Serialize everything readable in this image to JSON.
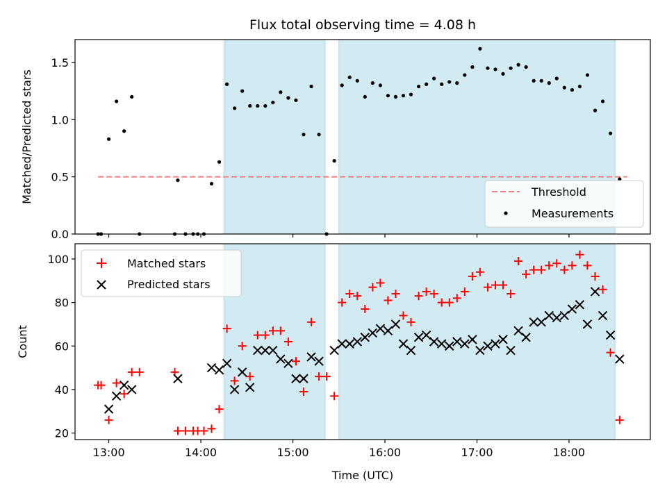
{
  "chart_data": [
    {
      "type": "scatter",
      "title": "Flux total observing time = 4.08 h",
      "xlabel": "",
      "ylabel": "Matched/Predicted stars",
      "ylim": [
        0,
        1.7
      ],
      "xlim": [
        "12:38",
        "18:53"
      ],
      "yticks": [
        "0.0",
        "0.5",
        "1.0",
        "1.5"
      ],
      "shaded_intervals": [
        [
          "14:15",
          "15:21"
        ],
        [
          "15:30",
          "18:30"
        ]
      ],
      "shade_color": "#add8e6",
      "threshold": {
        "name": "Threshold",
        "value": 0.5,
        "x": [
          "12:53",
          "18:38"
        ],
        "color": "#f08080"
      },
      "legend": {
        "placement": "lower right",
        "entries": [
          "Threshold",
          "Measurements"
        ]
      },
      "series": [
        {
          "name": "Measurements",
          "color": "#000000",
          "marker": "dot",
          "points": [
            [
              "12:53",
              0.0
            ],
            [
              "12:55",
              0.0
            ],
            [
              "13:00",
              0.83
            ],
            [
              "13:05",
              1.16
            ],
            [
              "13:10",
              0.9
            ],
            [
              "13:15",
              1.2
            ],
            [
              "13:20",
              0.0
            ],
            [
              "13:43",
              0.0
            ],
            [
              "13:45",
              0.47
            ],
            [
              "13:50",
              0.0
            ],
            [
              "13:55",
              0.0
            ],
            [
              "13:58",
              0.0
            ],
            [
              "14:02",
              0.0
            ],
            [
              "14:07",
              0.44
            ],
            [
              "14:12",
              0.63
            ],
            [
              "14:17",
              1.31
            ],
            [
              "14:22",
              1.1
            ],
            [
              "14:27",
              1.25
            ],
            [
              "14:32",
              1.12
            ],
            [
              "14:37",
              1.12
            ],
            [
              "14:42",
              1.12
            ],
            [
              "14:47",
              1.15
            ],
            [
              "14:52",
              1.24
            ],
            [
              "14:57",
              1.19
            ],
            [
              "15:02",
              1.17
            ],
            [
              "15:07",
              0.87
            ],
            [
              "15:12",
              1.29
            ],
            [
              "15:17",
              0.87
            ],
            [
              "15:22",
              0.0
            ],
            [
              "15:27",
              0.64
            ],
            [
              "15:32",
              1.3
            ],
            [
              "15:37",
              1.37
            ],
            [
              "15:42",
              1.34
            ],
            [
              "15:47",
              1.2
            ],
            [
              "15:52",
              1.32
            ],
            [
              "15:57",
              1.3
            ],
            [
              "16:02",
              1.21
            ],
            [
              "16:07",
              1.2
            ],
            [
              "16:12",
              1.21
            ],
            [
              "16:17",
              1.22
            ],
            [
              "16:22",
              1.29
            ],
            [
              "16:27",
              1.31
            ],
            [
              "16:32",
              1.36
            ],
            [
              "16:37",
              1.31
            ],
            [
              "16:42",
              1.33
            ],
            [
              "16:47",
              1.32
            ],
            [
              "16:52",
              1.39
            ],
            [
              "16:57",
              1.46
            ],
            [
              "17:02",
              1.62
            ],
            [
              "17:07",
              1.45
            ],
            [
              "17:12",
              1.44
            ],
            [
              "17:17",
              1.4
            ],
            [
              "17:22",
              1.45
            ],
            [
              "17:27",
              1.48
            ],
            [
              "17:32",
              1.46
            ],
            [
              "17:37",
              1.34
            ],
            [
              "17:42",
              1.34
            ],
            [
              "17:47",
              1.32
            ],
            [
              "17:52",
              1.36
            ],
            [
              "17:57",
              1.28
            ],
            [
              "18:02",
              1.26
            ],
            [
              "18:07",
              1.29
            ],
            [
              "18:12",
              1.39
            ],
            [
              "18:17",
              1.08
            ],
            [
              "18:22",
              1.16
            ],
            [
              "18:27",
              0.88
            ],
            [
              "18:33",
              0.48
            ]
          ]
        }
      ]
    },
    {
      "type": "scatter",
      "title": "",
      "xlabel": "Time (UTC)",
      "ylabel": "Count",
      "ylim": [
        17,
        107
      ],
      "xlim": [
        "12:38",
        "18:53"
      ],
      "yticks": [
        "20",
        "40",
        "60",
        "80",
        "100"
      ],
      "xticks": [
        "13:00",
        "14:00",
        "15:00",
        "16:00",
        "17:00",
        "18:00"
      ],
      "shaded_intervals": [
        [
          "14:15",
          "15:21"
        ],
        [
          "15:30",
          "18:30"
        ]
      ],
      "shade_color": "#add8e6",
      "legend": {
        "placement": "upper left",
        "entries": [
          "Matched stars",
          "Predicted stars"
        ]
      },
      "series": [
        {
          "name": "Matched stars",
          "color": "#ff0000",
          "marker": "plus",
          "points": [
            [
              "12:53",
              42
            ],
            [
              "12:55",
              42
            ],
            [
              "13:00",
              26
            ],
            [
              "13:05",
              43
            ],
            [
              "13:10",
              38
            ],
            [
              "13:15",
              48
            ],
            [
              "13:20",
              48
            ],
            [
              "13:43",
              48
            ],
            [
              "13:45",
              21
            ],
            [
              "13:50",
              21
            ],
            [
              "13:55",
              21
            ],
            [
              "13:58",
              21
            ],
            [
              "14:02",
              21
            ],
            [
              "14:07",
              22
            ],
            [
              "14:12",
              31
            ],
            [
              "14:17",
              68
            ],
            [
              "14:22",
              44
            ],
            [
              "14:27",
              60
            ],
            [
              "14:32",
              46
            ],
            [
              "14:37",
              65
            ],
            [
              "14:42",
              65
            ],
            [
              "14:47",
              67
            ],
            [
              "14:52",
              67
            ],
            [
              "14:57",
              62
            ],
            [
              "15:02",
              53
            ],
            [
              "15:07",
              39
            ],
            [
              "15:12",
              71
            ],
            [
              "15:17",
              46
            ],
            [
              "15:22",
              46
            ],
            [
              "15:27",
              37
            ],
            [
              "15:32",
              80
            ],
            [
              "15:37",
              84
            ],
            [
              "15:42",
              83
            ],
            [
              "15:47",
              77
            ],
            [
              "15:52",
              87
            ],
            [
              "15:57",
              89
            ],
            [
              "16:02",
              81
            ],
            [
              "16:07",
              84
            ],
            [
              "16:12",
              74
            ],
            [
              "16:17",
              71
            ],
            [
              "16:22",
              83
            ],
            [
              "16:27",
              85
            ],
            [
              "16:32",
              84
            ],
            [
              "16:37",
              80
            ],
            [
              "16:42",
              80
            ],
            [
              "16:47",
              82
            ],
            [
              "16:52",
              85
            ],
            [
              "16:57",
              92
            ],
            [
              "17:02",
              94
            ],
            [
              "17:07",
              87
            ],
            [
              "17:12",
              88
            ],
            [
              "17:17",
              88
            ],
            [
              "17:22",
              84
            ],
            [
              "17:27",
              99
            ],
            [
              "17:32",
              93
            ],
            [
              "17:37",
              95
            ],
            [
              "17:42",
              95
            ],
            [
              "17:47",
              97
            ],
            [
              "17:52",
              98
            ],
            [
              "17:57",
              95
            ],
            [
              "18:02",
              97
            ],
            [
              "18:07",
              102
            ],
            [
              "18:12",
              97
            ],
            [
              "18:17",
              92
            ],
            [
              "18:22",
              86
            ],
            [
              "18:27",
              57
            ],
            [
              "18:33",
              26
            ]
          ]
        },
        {
          "name": "Predicted stars",
          "color": "#000000",
          "marker": "cross",
          "points": [
            [
              "13:00",
              31
            ],
            [
              "13:05",
              37
            ],
            [
              "13:10",
              42
            ],
            [
              "13:15",
              40
            ],
            [
              "13:45",
              45
            ],
            [
              "14:07",
              50
            ],
            [
              "14:12",
              49
            ],
            [
              "14:17",
              52
            ],
            [
              "14:22",
              40
            ],
            [
              "14:27",
              48
            ],
            [
              "14:32",
              41
            ],
            [
              "14:37",
              58
            ],
            [
              "14:42",
              58
            ],
            [
              "14:47",
              58
            ],
            [
              "14:52",
              54
            ],
            [
              "14:57",
              52
            ],
            [
              "15:02",
              45
            ],
            [
              "15:07",
              45
            ],
            [
              "15:12",
              55
            ],
            [
              "15:17",
              53
            ],
            [
              "15:27",
              58
            ],
            [
              "15:32",
              61
            ],
            [
              "15:37",
              61
            ],
            [
              "15:42",
              62
            ],
            [
              "15:47",
              64
            ],
            [
              "15:52",
              66
            ],
            [
              "15:57",
              68
            ],
            [
              "16:02",
              67
            ],
            [
              "16:07",
              70
            ],
            [
              "16:12",
              61
            ],
            [
              "16:17",
              58
            ],
            [
              "16:22",
              64
            ],
            [
              "16:27",
              65
            ],
            [
              "16:32",
              62
            ],
            [
              "16:37",
              61
            ],
            [
              "16:42",
              60
            ],
            [
              "16:47",
              62
            ],
            [
              "16:52",
              61
            ],
            [
              "16:57",
              63
            ],
            [
              "17:02",
              58
            ],
            [
              "17:07",
              60
            ],
            [
              "17:12",
              61
            ],
            [
              "17:17",
              63
            ],
            [
              "17:22",
              58
            ],
            [
              "17:27",
              67
            ],
            [
              "17:32",
              64
            ],
            [
              "17:37",
              71
            ],
            [
              "17:42",
              71
            ],
            [
              "17:47",
              74
            ],
            [
              "17:52",
              73
            ],
            [
              "17:57",
              74
            ],
            [
              "18:02",
              77
            ],
            [
              "18:07",
              79
            ],
            [
              "18:12",
              70
            ],
            [
              "18:17",
              85
            ],
            [
              "18:22",
              74
            ],
            [
              "18:27",
              65
            ],
            [
              "18:33",
              54
            ]
          ]
        }
      ]
    }
  ]
}
